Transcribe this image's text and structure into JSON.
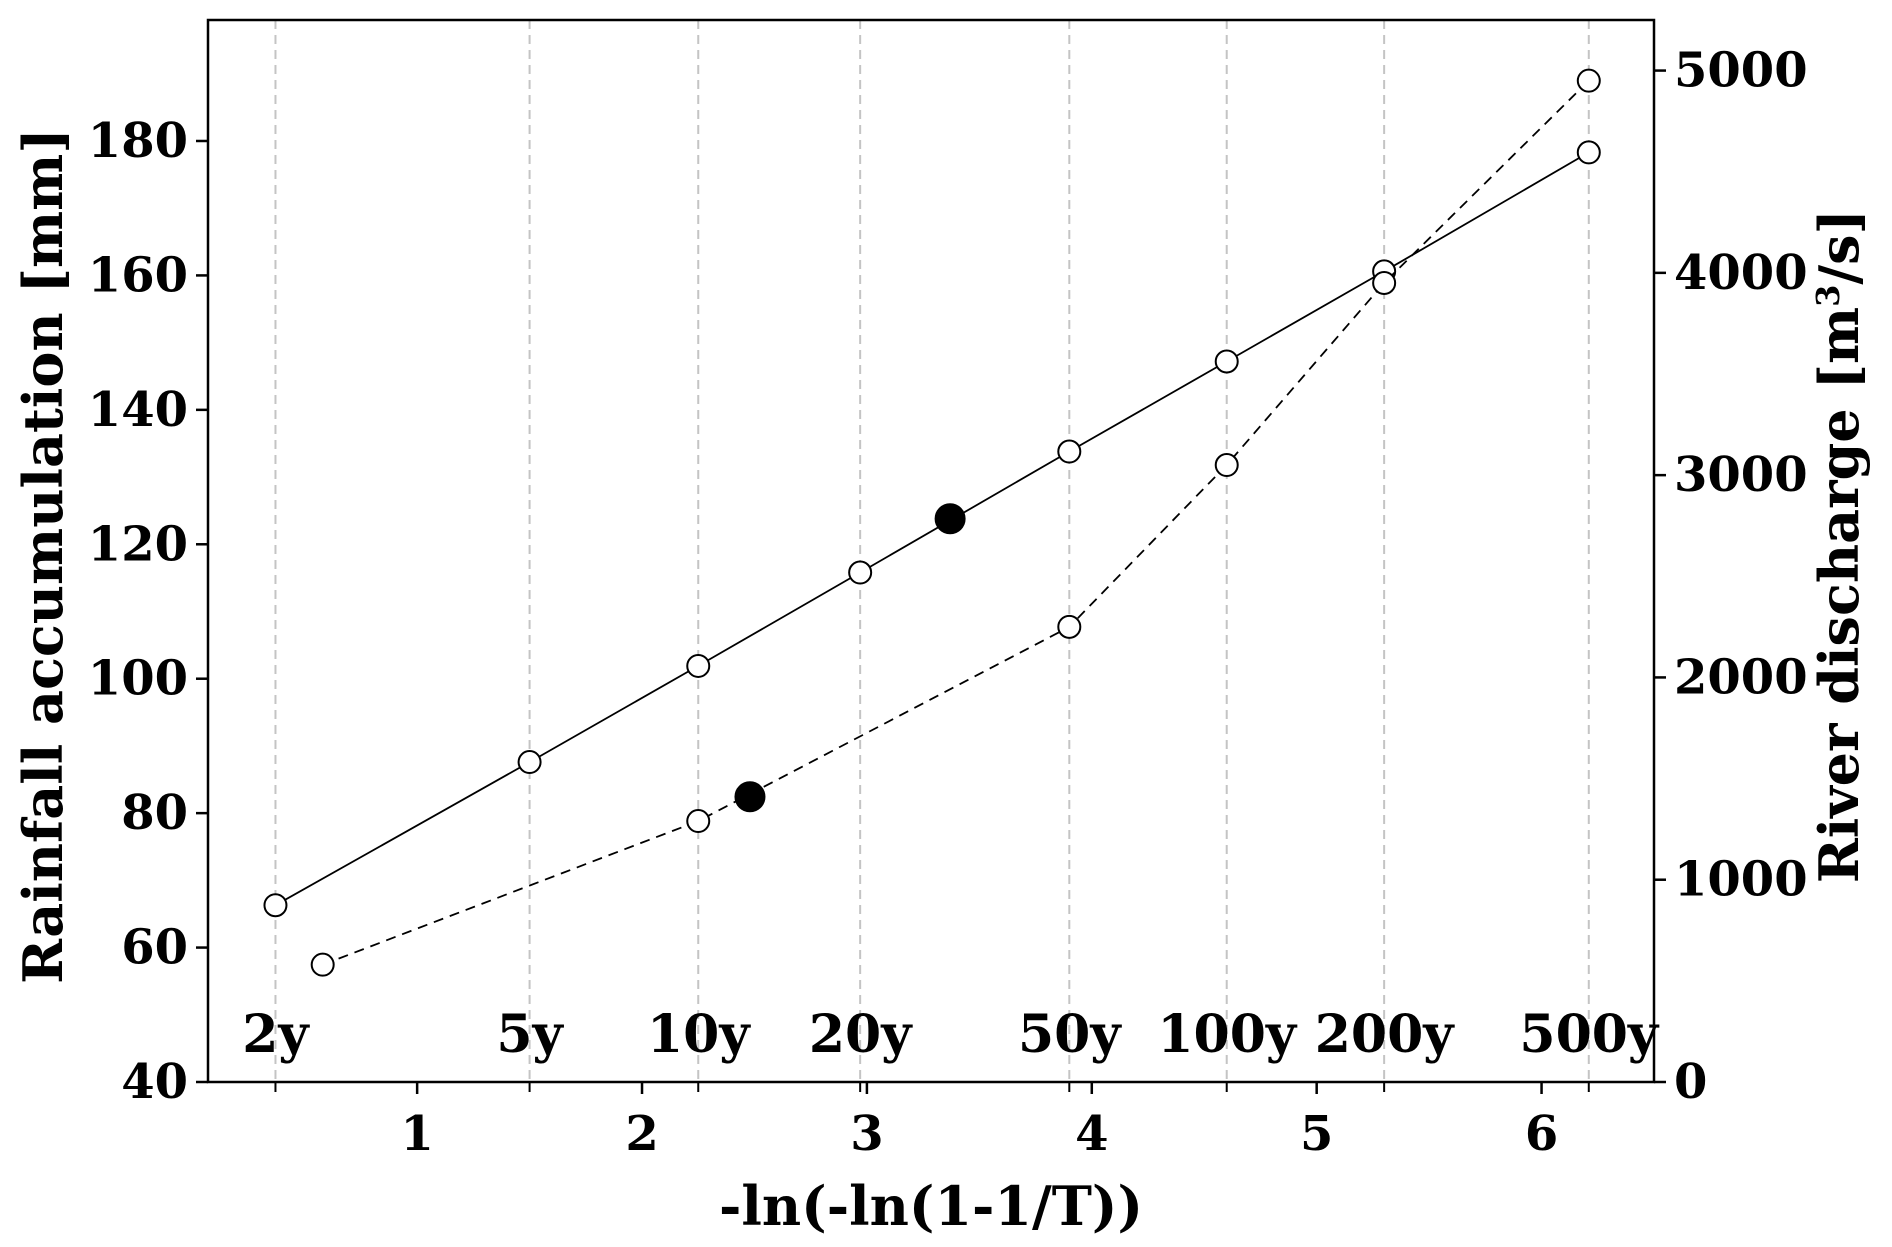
{
  "chart_data": {
    "type": "line",
    "title": "",
    "xlabel": "-ln(-ln(1-1/T))",
    "ylabel": "Rainfall accumulation [mm]",
    "y2label_main": "River discharge [m",
    "y2label_sup": "3",
    "y2label_tail": "/s]",
    "xlim": [
      0.07,
      6.5
    ],
    "ylim": [
      40,
      198
    ],
    "y2lim": [
      0,
      5250
    ],
    "x_ticks": [
      1,
      2,
      3,
      4,
      5,
      6
    ],
    "y_ticks": [
      40,
      60,
      80,
      100,
      120,
      140,
      160,
      180
    ],
    "y2_ticks": [
      0,
      1000,
      2000,
      3000,
      4000,
      5000
    ],
    "return_periods": [
      {
        "label": "2y",
        "x": 0.37
      },
      {
        "label": "5y",
        "x": 1.5
      },
      {
        "label": "10y",
        "x": 2.25
      },
      {
        "label": "20y",
        "x": 2.97
      },
      {
        "label": "50y",
        "x": 3.9
      },
      {
        "label": "100y",
        "x": 4.6
      },
      {
        "label": "200y",
        "x": 5.3
      },
      {
        "label": "500y",
        "x": 6.21
      }
    ],
    "grid": "vertical dashed at return periods",
    "series": [
      {
        "axis": "left",
        "line_style": "solid",
        "points": [
          {
            "x": 0.37,
            "y": 66.3
          },
          {
            "x": 1.5,
            "y": 87.6
          },
          {
            "x": 2.25,
            "y": 101.9
          },
          {
            "x": 2.97,
            "y": 115.8
          },
          {
            "x": 3.9,
            "y": 133.8
          },
          {
            "x": 4.6,
            "y": 147.2
          },
          {
            "x": 5.3,
            "y": 160.6
          },
          {
            "x": 6.21,
            "y": 178.3
          }
        ],
        "highlight": {
          "x": 3.37,
          "y": 123.8
        }
      },
      {
        "axis": "right",
        "line_style": "dashed",
        "points": [
          {
            "x": 0.58,
            "y": 580
          },
          {
            "x": 2.25,
            "y": 1290
          },
          {
            "x": 3.9,
            "y": 2250
          },
          {
            "x": 4.6,
            "y": 3050
          },
          {
            "x": 5.3,
            "y": 3950
          },
          {
            "x": 6.21,
            "y": 4950
          }
        ],
        "highlight": {
          "x": 2.48,
          "y": 1410
        }
      }
    ]
  }
}
